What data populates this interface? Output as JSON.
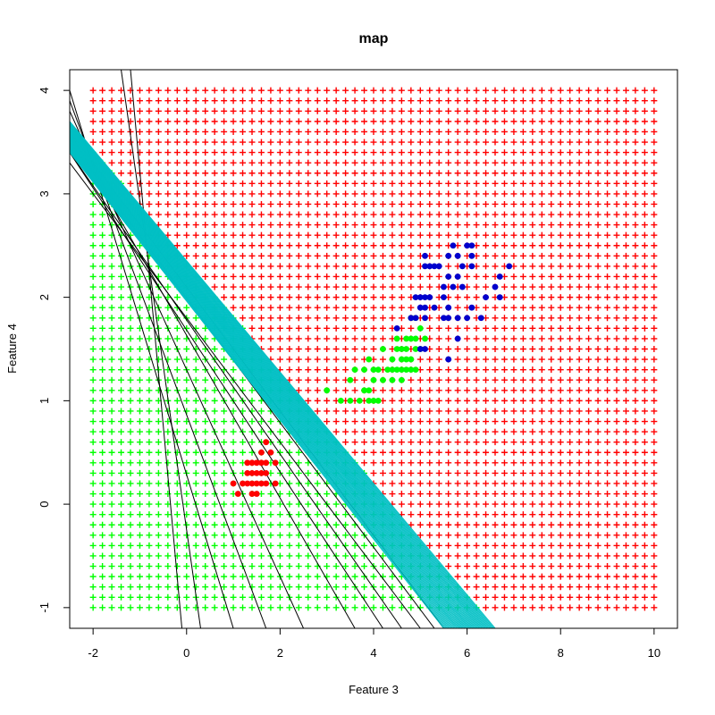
{
  "chart_data": {
    "type": "scatter",
    "title": "map",
    "xlabel": "Feature 3",
    "ylabel": "Feature 4",
    "xlim": [
      -2.5,
      10.5
    ],
    "ylim": [
      -1.2,
      4.2
    ],
    "x_ticks": [
      -2,
      0,
      2,
      4,
      6,
      8,
      10
    ],
    "y_ticks": [
      -1,
      0,
      1,
      2,
      3,
      4
    ],
    "grid": false,
    "colors": {
      "class_a": "#ff0000",
      "class_b": "#00ff00",
      "class_c": "#0000cd",
      "boundary_early": "#000000",
      "boundary_late": "#00bfc4"
    },
    "background_grid": {
      "marker": "+",
      "x_start": -2,
      "x_end": 10,
      "x_step": 0.2,
      "y_start": -1,
      "y_end": 4,
      "y_step": 0.1,
      "final_boundary": {
        "x1": -2.5,
        "y1": 3.7,
        "x2": 6.6,
        "y2": -1.2
      }
    },
    "series": [
      {
        "marker": "filled-circle",
        "color": "#ff0000",
        "points": [
          [
            1.7,
            0.6
          ],
          [
            1.6,
            0.5
          ],
          [
            1.8,
            0.5
          ],
          [
            1.3,
            0.4
          ],
          [
            1.4,
            0.4
          ],
          [
            1.5,
            0.4
          ],
          [
            1.6,
            0.4
          ],
          [
            1.7,
            0.4
          ],
          [
            1.9,
            0.4
          ],
          [
            1.3,
            0.3
          ],
          [
            1.4,
            0.3
          ],
          [
            1.5,
            0.3
          ],
          [
            1.6,
            0.3
          ],
          [
            1.7,
            0.3
          ],
          [
            1.0,
            0.2
          ],
          [
            1.2,
            0.2
          ],
          [
            1.3,
            0.2
          ],
          [
            1.4,
            0.2
          ],
          [
            1.5,
            0.2
          ],
          [
            1.6,
            0.2
          ],
          [
            1.7,
            0.2
          ],
          [
            1.9,
            0.2
          ],
          [
            1.1,
            0.1
          ],
          [
            1.4,
            0.1
          ],
          [
            1.5,
            0.1
          ]
        ]
      },
      {
        "marker": "filled-circle",
        "color": "#00ff00",
        "points": [
          [
            3.0,
            1.1
          ],
          [
            3.3,
            1.0
          ],
          [
            3.5,
            1.0
          ],
          [
            3.7,
            1.0
          ],
          [
            3.9,
            1.0
          ],
          [
            4.0,
            1.0
          ],
          [
            4.1,
            1.0
          ],
          [
            3.9,
            1.1
          ],
          [
            3.8,
            1.1
          ],
          [
            4.0,
            1.2
          ],
          [
            4.2,
            1.2
          ],
          [
            4.4,
            1.2
          ],
          [
            4.6,
            1.2
          ],
          [
            4.1,
            1.3
          ],
          [
            4.3,
            1.3
          ],
          [
            4.4,
            1.3
          ],
          [
            4.5,
            1.3
          ],
          [
            4.6,
            1.3
          ],
          [
            4.7,
            1.3
          ],
          [
            4.8,
            1.3
          ],
          [
            4.9,
            1.3
          ],
          [
            3.6,
            1.3
          ],
          [
            3.5,
            1.2
          ],
          [
            4.0,
            1.3
          ],
          [
            3.8,
            1.3
          ],
          [
            3.9,
            1.4
          ],
          [
            4.4,
            1.4
          ],
          [
            4.6,
            1.4
          ],
          [
            4.7,
            1.4
          ],
          [
            4.8,
            1.4
          ],
          [
            4.2,
            1.5
          ],
          [
            4.5,
            1.5
          ],
          [
            4.7,
            1.5
          ],
          [
            4.9,
            1.5
          ],
          [
            5.0,
            1.5
          ],
          [
            4.5,
            1.6
          ],
          [
            4.8,
            1.6
          ],
          [
            4.7,
            1.6
          ],
          [
            4.9,
            1.6
          ],
          [
            4.6,
            1.5
          ],
          [
            4.8,
            1.8
          ],
          [
            4.9,
            1.8
          ],
          [
            5.0,
            1.7
          ],
          [
            5.1,
            1.6
          ]
        ]
      },
      {
        "marker": "filled-circle",
        "color": "#0000cd",
        "points": [
          [
            5.1,
            2.4
          ],
          [
            5.1,
            2.3
          ],
          [
            5.2,
            2.3
          ],
          [
            5.3,
            2.3
          ],
          [
            5.4,
            2.3
          ],
          [
            5.6,
            2.4
          ],
          [
            5.7,
            2.5
          ],
          [
            6.0,
            2.5
          ],
          [
            6.1,
            2.5
          ],
          [
            5.8,
            2.4
          ],
          [
            6.1,
            2.3
          ],
          [
            6.1,
            2.4
          ],
          [
            5.9,
            2.3
          ],
          [
            6.9,
            2.3
          ],
          [
            5.6,
            2.2
          ],
          [
            6.7,
            2.2
          ],
          [
            5.8,
            2.2
          ],
          [
            5.5,
            2.1
          ],
          [
            5.7,
            2.1
          ],
          [
            5.9,
            2.1
          ],
          [
            6.6,
            2.1
          ],
          [
            5.0,
            2.0
          ],
          [
            4.9,
            2.0
          ],
          [
            5.2,
            2.0
          ],
          [
            5.1,
            2.0
          ],
          [
            5.5,
            2.0
          ],
          [
            6.4,
            2.0
          ],
          [
            6.7,
            2.0
          ],
          [
            5.1,
            1.9
          ],
          [
            5.0,
            1.9
          ],
          [
            5.3,
            1.9
          ],
          [
            5.6,
            1.9
          ],
          [
            6.1,
            1.9
          ],
          [
            4.8,
            1.8
          ],
          [
            4.9,
            1.8
          ],
          [
            5.1,
            1.8
          ],
          [
            5.5,
            1.8
          ],
          [
            5.6,
            1.8
          ],
          [
            5.8,
            1.8
          ],
          [
            6.0,
            1.8
          ],
          [
            6.3,
            1.8
          ],
          [
            4.5,
            1.7
          ],
          [
            5.8,
            1.6
          ],
          [
            5.0,
            1.5
          ],
          [
            5.1,
            1.5
          ],
          [
            5.6,
            1.4
          ]
        ]
      }
    ],
    "boundary_lines": {
      "black": [
        [
          [
            -1.2,
            4.2
          ],
          [
            -0.1,
            -1.2
          ]
        ],
        [
          [
            -1.4,
            4.2
          ],
          [
            0.3,
            -1.2
          ]
        ],
        [
          [
            -2.5,
            4.0
          ],
          [
            1.0,
            -1.2
          ]
        ],
        [
          [
            -2.5,
            3.9
          ],
          [
            1.7,
            -1.2
          ]
        ],
        [
          [
            -2.5,
            3.8
          ],
          [
            2.5,
            -1.2
          ]
        ],
        [
          [
            -2.5,
            3.6
          ],
          [
            3.6,
            -1.2
          ]
        ],
        [
          [
            -2.5,
            3.4
          ],
          [
            4.2,
            -1.2
          ]
        ],
        [
          [
            -2.5,
            3.3
          ],
          [
            5.0,
            -1.2
          ]
        ],
        [
          [
            -2.5,
            3.4
          ],
          [
            4.6,
            -1.2
          ]
        ],
        [
          [
            -2.5,
            3.5
          ],
          [
            5.3,
            -1.2
          ]
        ],
        [
          [
            -2.5,
            3.6
          ],
          [
            5.5,
            -1.2
          ]
        ]
      ],
      "cyan_from": [
        -2.5,
        3.55
      ],
      "cyan_to_y": -1.2,
      "cyan_to_x_range": [
        5.5,
        6.6
      ],
      "cyan_count": 40
    }
  }
}
